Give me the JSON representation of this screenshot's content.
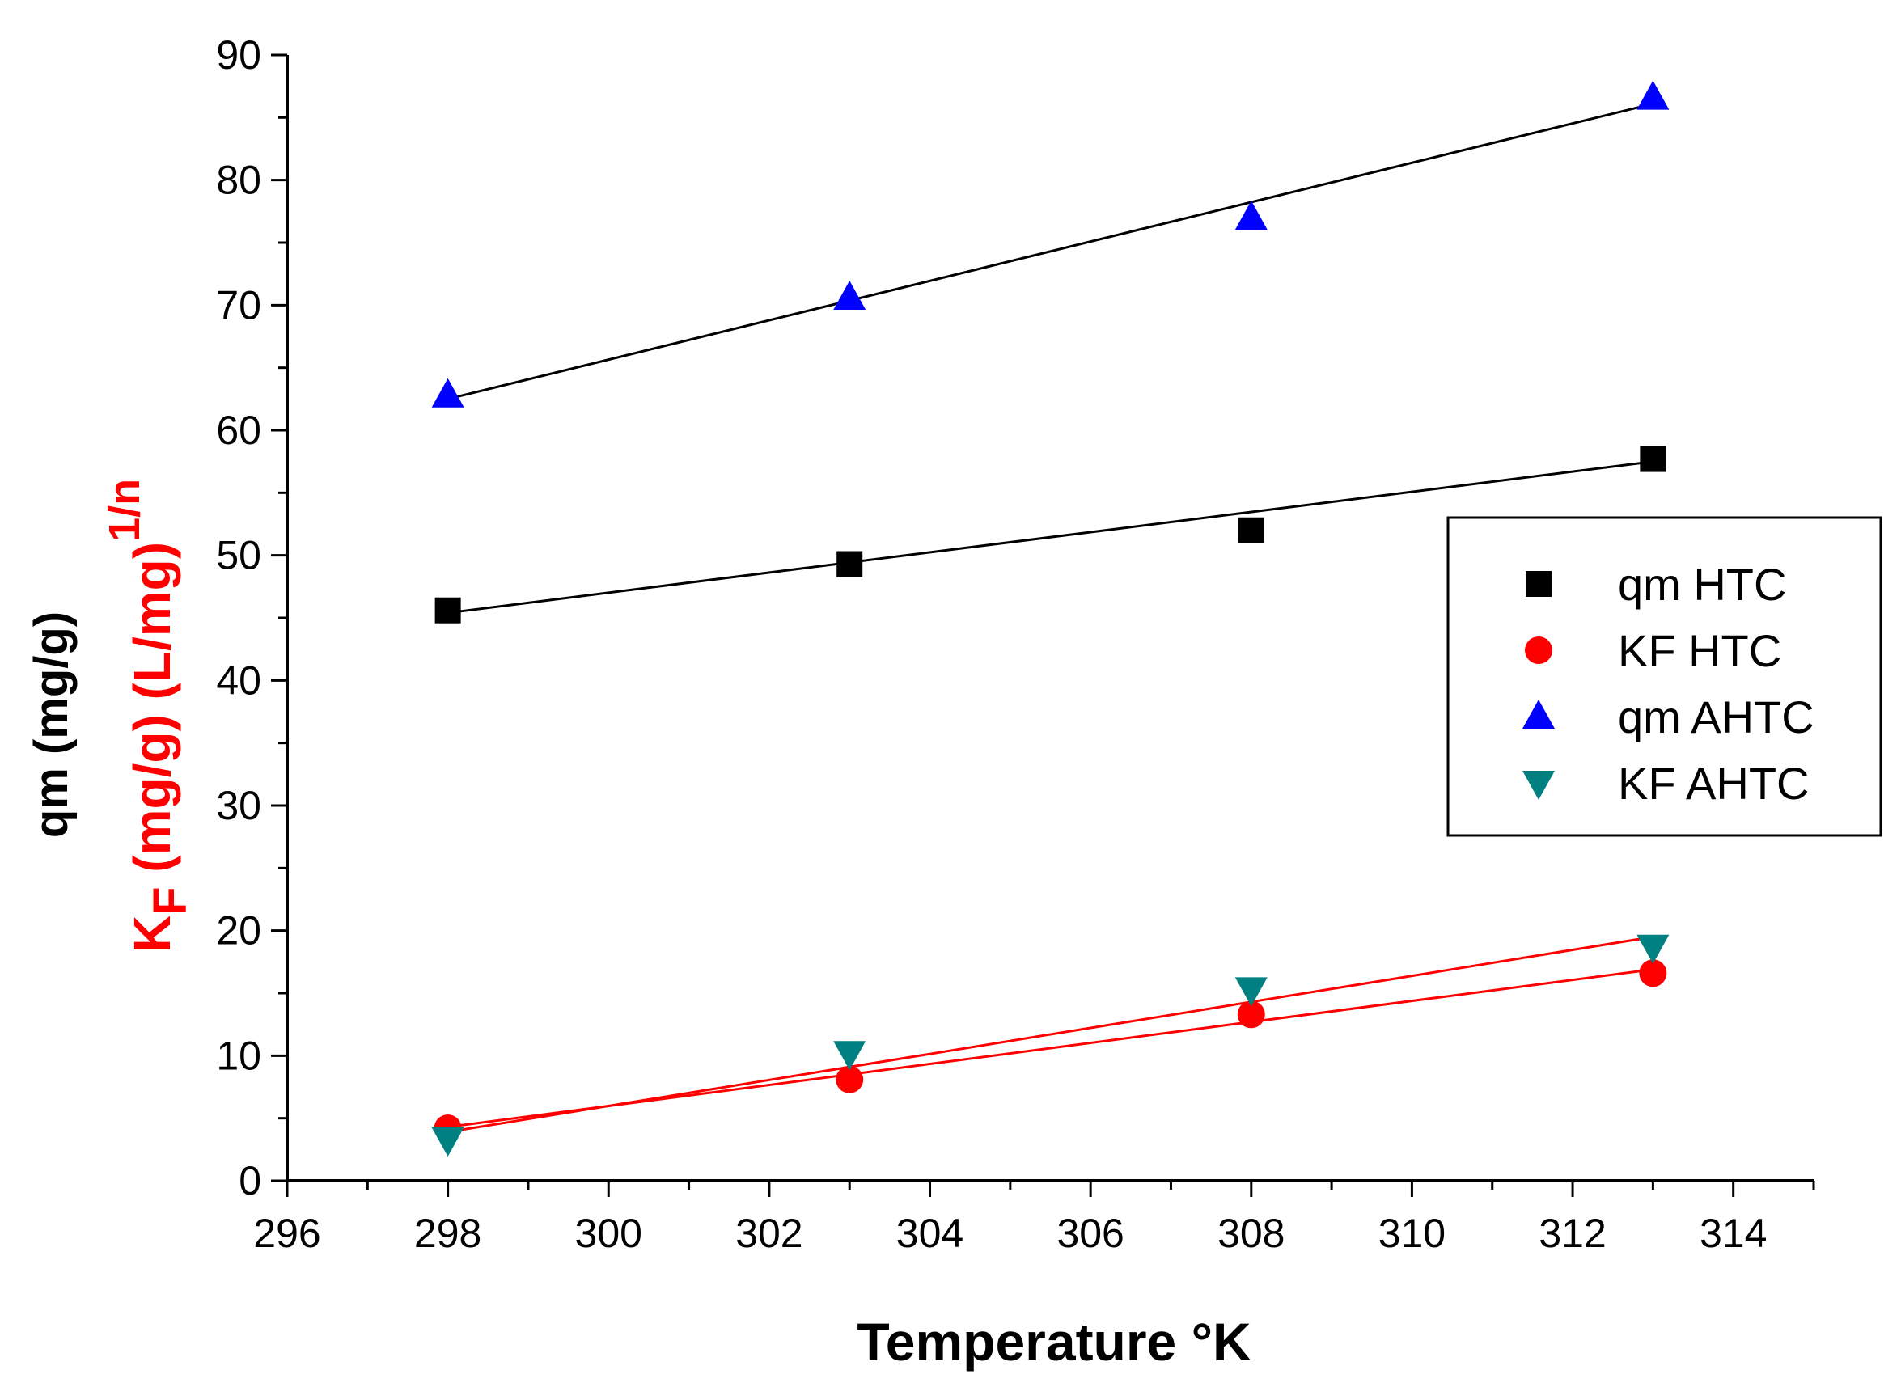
{
  "chart_data": {
    "type": "scatter",
    "title": "",
    "xlabel": "Temperature °K",
    "ylabel_black": "qm (mg/g)",
    "ylabel_red": {
      "main": "K",
      "sub": "F",
      "rest": " (mg/g) (L/mg)",
      "sup": "1/n"
    },
    "xlim": [
      296,
      315
    ],
    "ylim": [
      0,
      90
    ],
    "xticks": [
      296,
      298,
      300,
      302,
      304,
      306,
      308,
      310,
      312,
      314
    ],
    "yticks": [
      0,
      10,
      20,
      30,
      40,
      50,
      60,
      70,
      80,
      90
    ],
    "grid": false,
    "legend_position": "right",
    "series": [
      {
        "name": "qm HTC",
        "marker": "square",
        "color": "#000000",
        "fit_color": "#000000",
        "x": [
          298,
          303,
          308,
          313
        ],
        "y": [
          45.6,
          49.3,
          52.0,
          57.7
        ],
        "fit": [
          45.4,
          57.5
        ]
      },
      {
        "name": "KF HTC",
        "marker": "circle",
        "color": "#ff0000",
        "fit_color": "#ff0000",
        "x": [
          298,
          303,
          308,
          313
        ],
        "y": [
          4.2,
          8.1,
          13.3,
          16.6
        ],
        "fit": [
          4.3,
          16.9
        ]
      },
      {
        "name": "qm AHTC",
        "marker": "triangle-up",
        "color": "#0000ff",
        "fit_color": "#000000",
        "x": [
          298,
          303,
          308,
          313
        ],
        "y": [
          62.8,
          70.6,
          77.0,
          86.6
        ],
        "fit": [
          62.5,
          86.1
        ]
      },
      {
        "name": "KF AHTC",
        "marker": "triangle-down",
        "color": "#008080",
        "fit_color": "#ff0000",
        "x": [
          298,
          303,
          308,
          313
        ],
        "y": [
          3.3,
          10.2,
          15.3,
          18.7
        ],
        "fit": [
          3.9,
          19.5
        ]
      }
    ]
  }
}
